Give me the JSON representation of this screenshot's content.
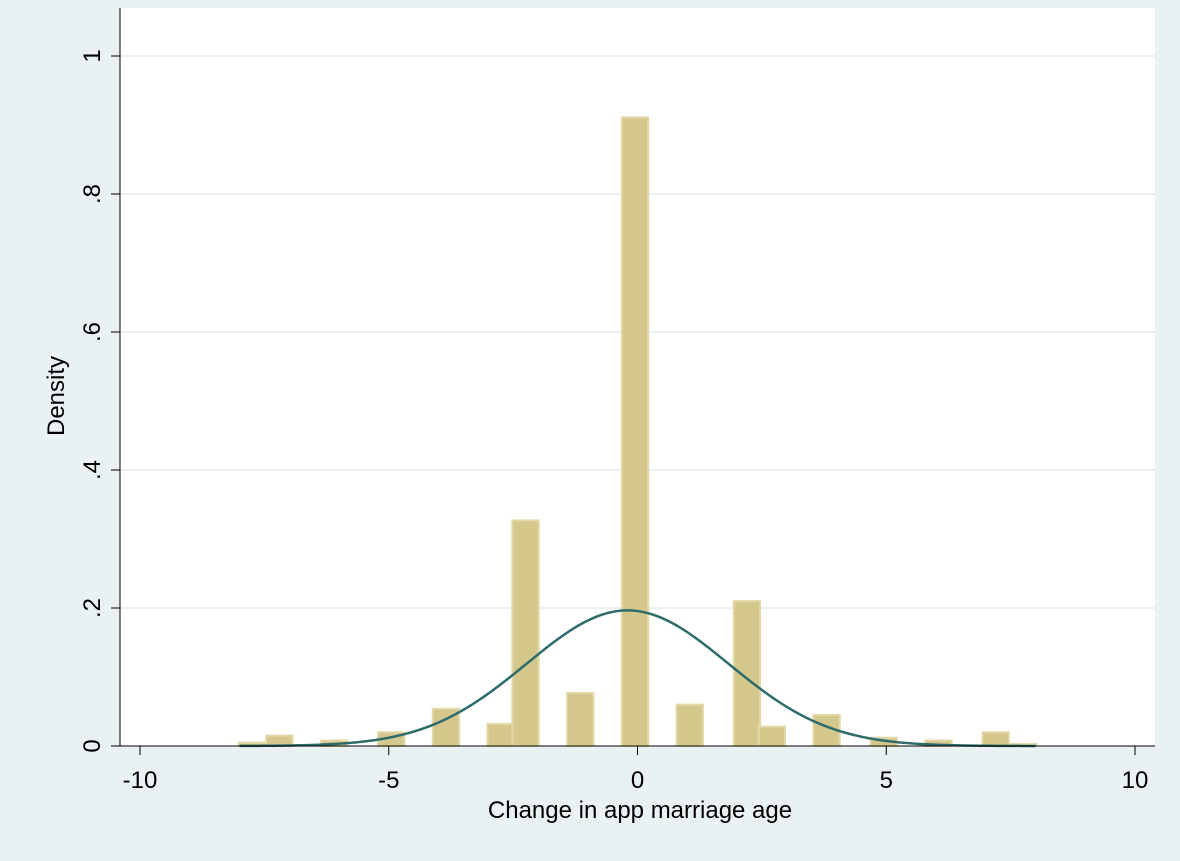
{
  "chart_data": {
    "type": "bar",
    "xlabel": "Change in app marriage age",
    "ylabel": "Density",
    "xlim": [
      -10,
      10
    ],
    "ylim": [
      0,
      1
    ],
    "x_ticks": [
      {
        "value": -10,
        "label": "-10"
      },
      {
        "value": -5,
        "label": "-5"
      },
      {
        "value": 0,
        "label": "0"
      },
      {
        "value": 5,
        "label": "5"
      },
      {
        "value": 10,
        "label": "10"
      }
    ],
    "y_ticks": [
      {
        "value": 0,
        "label": "0"
      },
      {
        "value": 0.2,
        "label": ".2"
      },
      {
        "value": 0.4,
        "label": ".4"
      },
      {
        "value": 0.6,
        "label": ".6"
      },
      {
        "value": 0.8,
        "label": ".8"
      },
      {
        "value": 1,
        "label": "1"
      }
    ],
    "grid": true,
    "histogram": {
      "bin_width": 0.53,
      "bins": [
        {
          "x": -7.75,
          "density": 0.005
        },
        {
          "x": -7.2,
          "density": 0.015
        },
        {
          "x": -6.1,
          "density": 0.008
        },
        {
          "x": -4.95,
          "density": 0.02
        },
        {
          "x": -3.85,
          "density": 0.054
        },
        {
          "x": -2.75,
          "density": 0.032
        },
        {
          "x": -2.25,
          "density": 0.327
        },
        {
          "x": -1.15,
          "density": 0.077
        },
        {
          "x": -0.05,
          "density": 0.911
        },
        {
          "x": 1.05,
          "density": 0.06
        },
        {
          "x": 2.2,
          "density": 0.21
        },
        {
          "x": 2.7,
          "density": 0.028
        },
        {
          "x": 3.8,
          "density": 0.045
        },
        {
          "x": 4.95,
          "density": 0.012
        },
        {
          "x": 6.05,
          "density": 0.008
        },
        {
          "x": 7.2,
          "density": 0.02
        },
        {
          "x": 7.75,
          "density": 0.003
        }
      ]
    },
    "normal_curve": {
      "mean": -0.2,
      "sd": 2.03,
      "x_range": [
        -8,
        8
      ]
    },
    "colors": {
      "bar_fill": "#d4c78c",
      "bar_edge": "#e3d9a8",
      "curve": "#2e6b6b",
      "plot_bg": "#ffffff",
      "outer_bg": "#eaf1f3",
      "grid": "#eaf1f3",
      "axis": "#000000"
    }
  }
}
